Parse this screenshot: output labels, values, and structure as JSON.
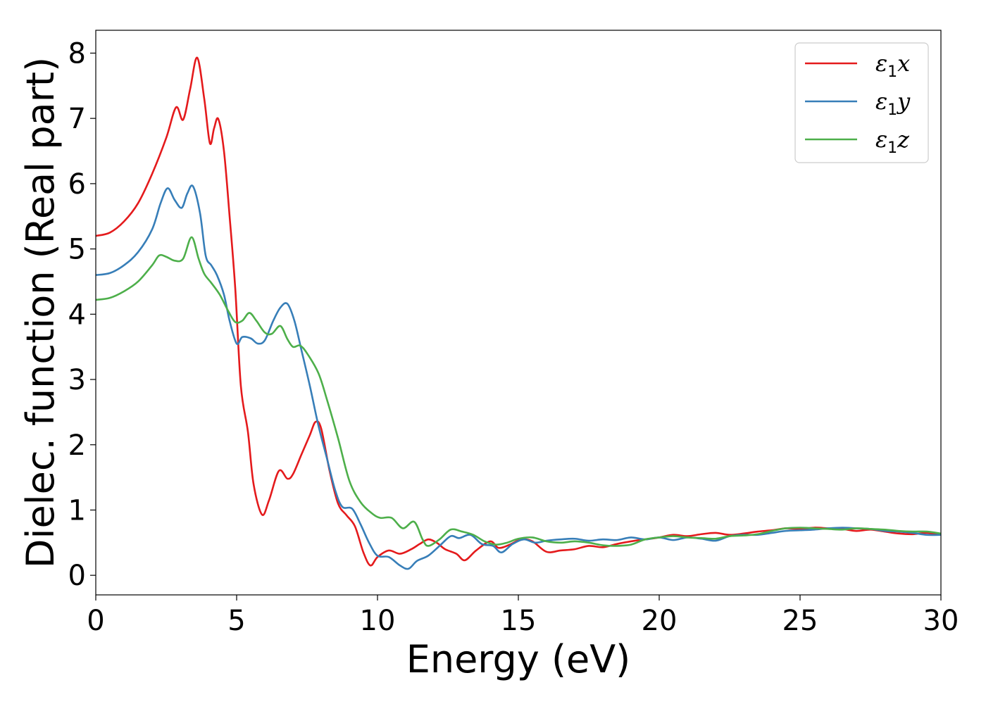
{
  "chart_data": {
    "type": "line",
    "xlabel": "Energy (eV)",
    "ylabel": "Dielec. function (Real part)",
    "xlim": [
      0,
      30
    ],
    "ylim": [
      -0.3,
      8.35
    ],
    "xticks": [
      0,
      5,
      10,
      15,
      20,
      25,
      30
    ],
    "yticks": [
      0,
      1,
      2,
      3,
      4,
      5,
      6,
      7,
      8
    ],
    "grid": false,
    "legend_position": "top-right",
    "series": [
      {
        "name": "ε1x",
        "legend_symbol": "ε",
        "legend_subscript": "1",
        "legend_suffix": "x",
        "color": "#e41a1c",
        "points": [
          [
            0,
            5.2
          ],
          [
            0.5,
            5.25
          ],
          [
            1.0,
            5.42
          ],
          [
            1.5,
            5.7
          ],
          [
            2.0,
            6.15
          ],
          [
            2.5,
            6.7
          ],
          [
            2.85,
            7.17
          ],
          [
            3.1,
            6.98
          ],
          [
            3.35,
            7.45
          ],
          [
            3.6,
            7.93
          ],
          [
            3.85,
            7.3
          ],
          [
            4.05,
            6.62
          ],
          [
            4.2,
            6.85
          ],
          [
            4.35,
            6.99
          ],
          [
            4.55,
            6.5
          ],
          [
            4.75,
            5.5
          ],
          [
            4.95,
            4.4
          ],
          [
            5.15,
            2.9
          ],
          [
            5.4,
            2.2
          ],
          [
            5.6,
            1.4
          ],
          [
            5.9,
            0.93
          ],
          [
            6.15,
            1.15
          ],
          [
            6.5,
            1.6
          ],
          [
            6.8,
            1.48
          ],
          [
            7.0,
            1.55
          ],
          [
            7.3,
            1.85
          ],
          [
            7.6,
            2.15
          ],
          [
            7.8,
            2.35
          ],
          [
            8.0,
            2.25
          ],
          [
            8.3,
            1.6
          ],
          [
            8.6,
            1.1
          ],
          [
            8.9,
            0.92
          ],
          [
            9.2,
            0.75
          ],
          [
            9.5,
            0.35
          ],
          [
            9.75,
            0.15
          ],
          [
            10.0,
            0.28
          ],
          [
            10.4,
            0.38
          ],
          [
            10.8,
            0.33
          ],
          [
            11.2,
            0.4
          ],
          [
            11.5,
            0.48
          ],
          [
            11.8,
            0.55
          ],
          [
            12.1,
            0.5
          ],
          [
            12.4,
            0.4
          ],
          [
            12.8,
            0.33
          ],
          [
            13.1,
            0.23
          ],
          [
            13.5,
            0.38
          ],
          [
            14.0,
            0.52
          ],
          [
            14.3,
            0.42
          ],
          [
            14.7,
            0.47
          ],
          [
            15.1,
            0.55
          ],
          [
            15.5,
            0.52
          ],
          [
            16.0,
            0.36
          ],
          [
            16.5,
            0.38
          ],
          [
            17.0,
            0.4
          ],
          [
            17.5,
            0.45
          ],
          [
            18.0,
            0.43
          ],
          [
            18.5,
            0.48
          ],
          [
            19.0,
            0.52
          ],
          [
            19.5,
            0.55
          ],
          [
            20.0,
            0.58
          ],
          [
            20.5,
            0.62
          ],
          [
            21.0,
            0.6
          ],
          [
            21.5,
            0.63
          ],
          [
            22.0,
            0.65
          ],
          [
            22.5,
            0.62
          ],
          [
            23.0,
            0.64
          ],
          [
            23.5,
            0.67
          ],
          [
            24.0,
            0.69
          ],
          [
            24.5,
            0.72
          ],
          [
            25.0,
            0.71
          ],
          [
            25.5,
            0.73
          ],
          [
            26.0,
            0.72
          ],
          [
            26.5,
            0.71
          ],
          [
            27.0,
            0.68
          ],
          [
            27.5,
            0.7
          ],
          [
            28.0,
            0.67
          ],
          [
            28.5,
            0.64
          ],
          [
            29.0,
            0.63
          ],
          [
            29.5,
            0.65
          ],
          [
            30.0,
            0.62
          ]
        ]
      },
      {
        "name": "ε1y",
        "legend_symbol": "ε",
        "legend_subscript": "1",
        "legend_suffix": "y",
        "color": "#377eb8",
        "points": [
          [
            0,
            4.6
          ],
          [
            0.5,
            4.63
          ],
          [
            1.0,
            4.75
          ],
          [
            1.5,
            4.95
          ],
          [
            2.0,
            5.3
          ],
          [
            2.3,
            5.7
          ],
          [
            2.55,
            5.93
          ],
          [
            2.8,
            5.75
          ],
          [
            3.05,
            5.63
          ],
          [
            3.25,
            5.85
          ],
          [
            3.45,
            5.96
          ],
          [
            3.7,
            5.55
          ],
          [
            3.9,
            4.9
          ],
          [
            4.1,
            4.75
          ],
          [
            4.3,
            4.6
          ],
          [
            4.55,
            4.3
          ],
          [
            4.75,
            3.9
          ],
          [
            5.0,
            3.55
          ],
          [
            5.2,
            3.65
          ],
          [
            5.5,
            3.63
          ],
          [
            5.75,
            3.55
          ],
          [
            6.0,
            3.6
          ],
          [
            6.3,
            3.9
          ],
          [
            6.55,
            4.1
          ],
          [
            6.8,
            4.16
          ],
          [
            7.05,
            3.9
          ],
          [
            7.3,
            3.45
          ],
          [
            7.6,
            2.9
          ],
          [
            7.9,
            2.3
          ],
          [
            8.2,
            1.8
          ],
          [
            8.5,
            1.3
          ],
          [
            8.75,
            1.05
          ],
          [
            9.1,
            1.02
          ],
          [
            9.4,
            0.78
          ],
          [
            9.7,
            0.5
          ],
          [
            10.0,
            0.3
          ],
          [
            10.4,
            0.28
          ],
          [
            10.8,
            0.15
          ],
          [
            11.1,
            0.1
          ],
          [
            11.4,
            0.22
          ],
          [
            11.8,
            0.3
          ],
          [
            12.2,
            0.45
          ],
          [
            12.6,
            0.6
          ],
          [
            12.9,
            0.57
          ],
          [
            13.3,
            0.62
          ],
          [
            13.7,
            0.48
          ],
          [
            14.1,
            0.45
          ],
          [
            14.4,
            0.35
          ],
          [
            14.8,
            0.48
          ],
          [
            15.2,
            0.55
          ],
          [
            15.6,
            0.5
          ],
          [
            16.0,
            0.53
          ],
          [
            16.5,
            0.55
          ],
          [
            17.0,
            0.56
          ],
          [
            17.5,
            0.53
          ],
          [
            18.0,
            0.55
          ],
          [
            18.5,
            0.54
          ],
          [
            19.0,
            0.58
          ],
          [
            19.5,
            0.55
          ],
          [
            20.0,
            0.58
          ],
          [
            20.5,
            0.54
          ],
          [
            21.0,
            0.58
          ],
          [
            21.5,
            0.56
          ],
          [
            22.0,
            0.53
          ],
          [
            22.5,
            0.6
          ],
          [
            23.0,
            0.62
          ],
          [
            23.5,
            0.62
          ],
          [
            24.0,
            0.65
          ],
          [
            24.5,
            0.68
          ],
          [
            25.0,
            0.69
          ],
          [
            25.5,
            0.7
          ],
          [
            26.0,
            0.72
          ],
          [
            26.5,
            0.73
          ],
          [
            27.0,
            0.72
          ],
          [
            27.5,
            0.71
          ],
          [
            28.0,
            0.68
          ],
          [
            28.5,
            0.67
          ],
          [
            29.0,
            0.65
          ],
          [
            29.5,
            0.62
          ],
          [
            30.0,
            0.62
          ]
        ]
      },
      {
        "name": "ε1z",
        "legend_symbol": "ε",
        "legend_subscript": "1",
        "legend_suffix": "z",
        "color": "#4daf4a",
        "points": [
          [
            0,
            4.22
          ],
          [
            0.5,
            4.25
          ],
          [
            1.0,
            4.35
          ],
          [
            1.5,
            4.5
          ],
          [
            2.0,
            4.75
          ],
          [
            2.25,
            4.9
          ],
          [
            2.5,
            4.88
          ],
          [
            2.8,
            4.82
          ],
          [
            3.1,
            4.85
          ],
          [
            3.4,
            5.18
          ],
          [
            3.65,
            4.85
          ],
          [
            3.85,
            4.62
          ],
          [
            4.1,
            4.48
          ],
          [
            4.4,
            4.3
          ],
          [
            4.7,
            4.05
          ],
          [
            4.95,
            3.88
          ],
          [
            5.2,
            3.9
          ],
          [
            5.45,
            4.02
          ],
          [
            5.7,
            3.9
          ],
          [
            6.0,
            3.72
          ],
          [
            6.25,
            3.7
          ],
          [
            6.55,
            3.82
          ],
          [
            6.8,
            3.62
          ],
          [
            7.0,
            3.5
          ],
          [
            7.25,
            3.52
          ],
          [
            7.5,
            3.4
          ],
          [
            7.9,
            3.1
          ],
          [
            8.2,
            2.7
          ],
          [
            8.6,
            2.1
          ],
          [
            9.0,
            1.45
          ],
          [
            9.4,
            1.12
          ],
          [
            9.8,
            0.95
          ],
          [
            10.1,
            0.88
          ],
          [
            10.5,
            0.88
          ],
          [
            10.9,
            0.72
          ],
          [
            11.3,
            0.82
          ],
          [
            11.6,
            0.55
          ],
          [
            11.8,
            0.45
          ],
          [
            12.2,
            0.55
          ],
          [
            12.6,
            0.7
          ],
          [
            13.0,
            0.67
          ],
          [
            13.4,
            0.62
          ],
          [
            13.8,
            0.52
          ],
          [
            14.2,
            0.47
          ],
          [
            14.6,
            0.5
          ],
          [
            15.0,
            0.56
          ],
          [
            15.5,
            0.58
          ],
          [
            16.0,
            0.52
          ],
          [
            16.5,
            0.5
          ],
          [
            17.0,
            0.52
          ],
          [
            17.5,
            0.5
          ],
          [
            18.0,
            0.46
          ],
          [
            18.5,
            0.45
          ],
          [
            19.0,
            0.47
          ],
          [
            19.5,
            0.55
          ],
          [
            20.0,
            0.58
          ],
          [
            20.5,
            0.6
          ],
          [
            21.0,
            0.58
          ],
          [
            21.5,
            0.57
          ],
          [
            22.0,
            0.56
          ],
          [
            22.5,
            0.6
          ],
          [
            23.0,
            0.61
          ],
          [
            23.5,
            0.63
          ],
          [
            24.0,
            0.68
          ],
          [
            24.5,
            0.72
          ],
          [
            25.0,
            0.73
          ],
          [
            25.5,
            0.72
          ],
          [
            26.0,
            0.71
          ],
          [
            26.5,
            0.7
          ],
          [
            27.0,
            0.72
          ],
          [
            27.5,
            0.71
          ],
          [
            28.0,
            0.7
          ],
          [
            28.5,
            0.68
          ],
          [
            29.0,
            0.67
          ],
          [
            29.5,
            0.67
          ],
          [
            30.0,
            0.64
          ]
        ]
      }
    ]
  }
}
